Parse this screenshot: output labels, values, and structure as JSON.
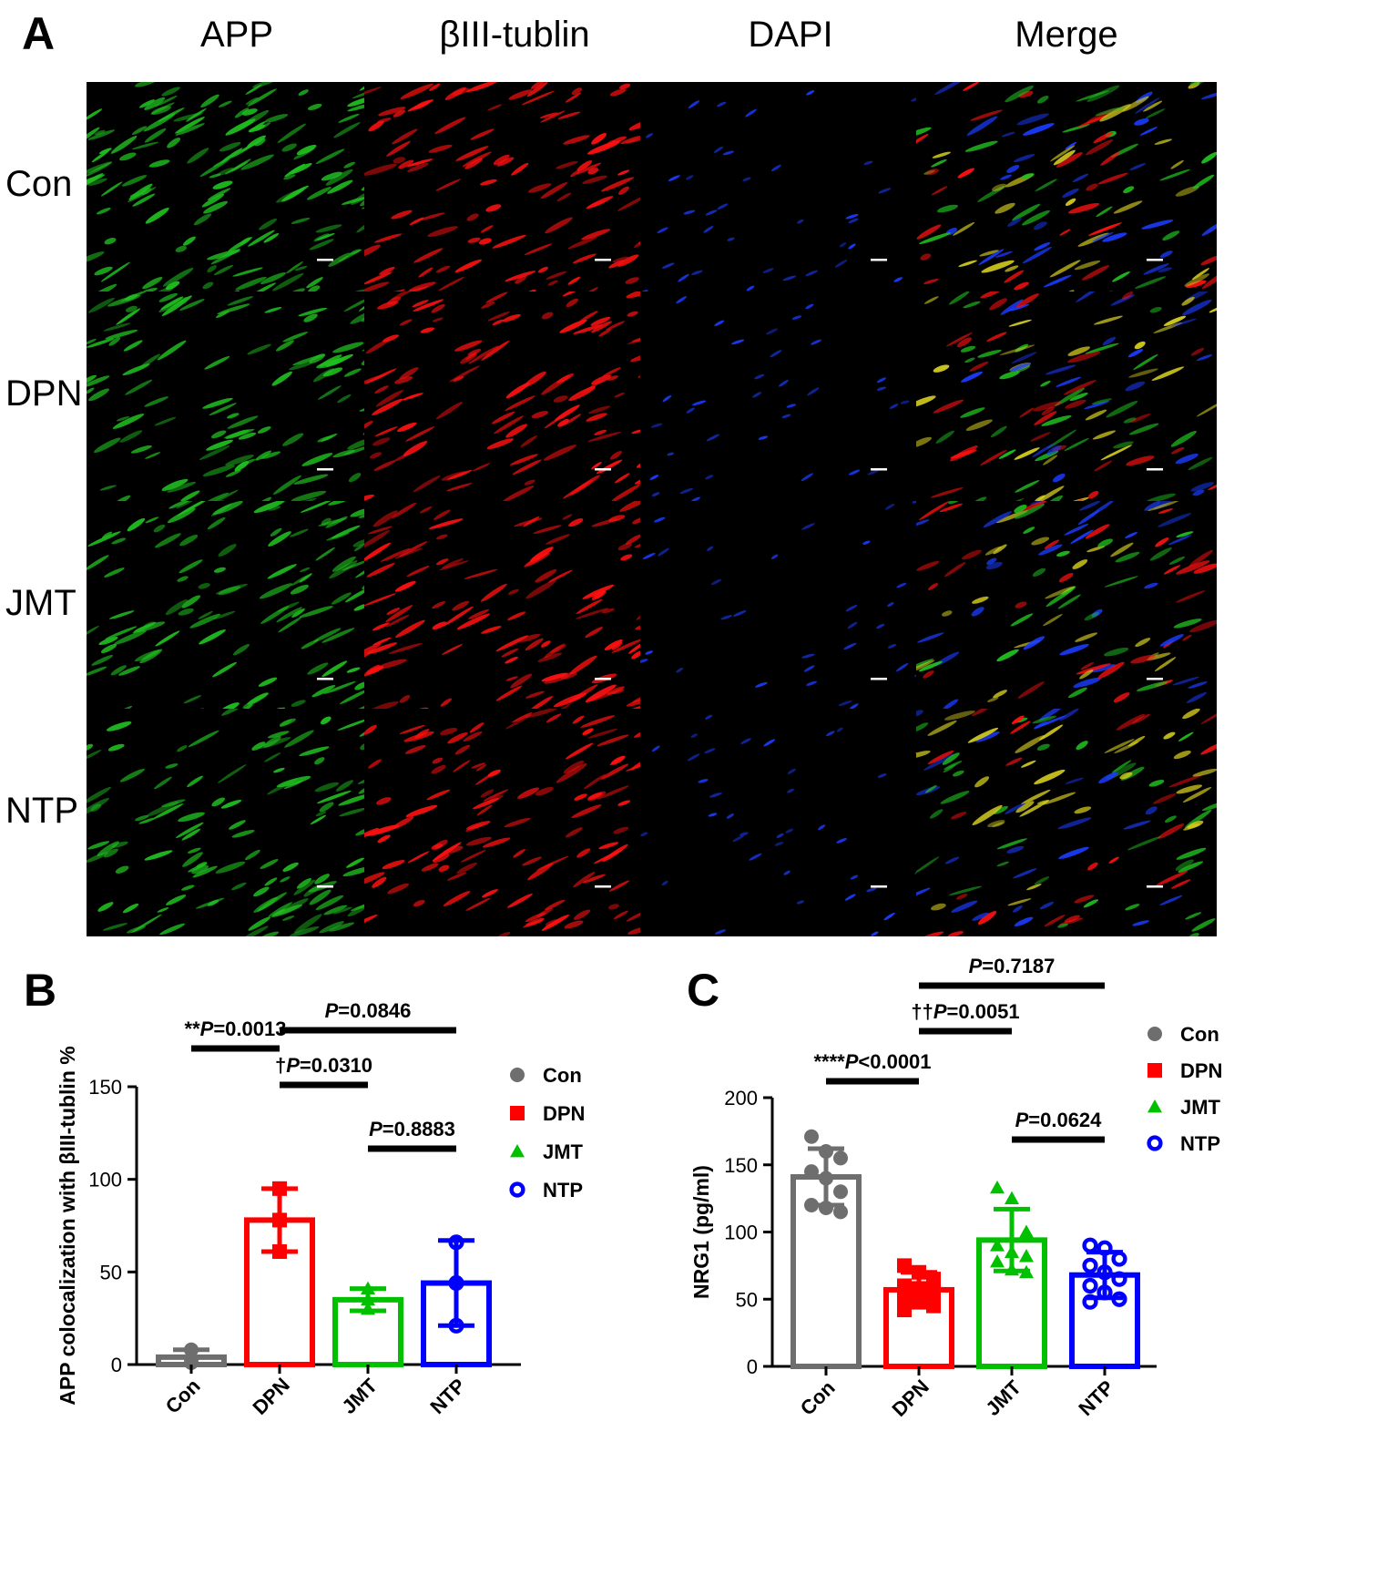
{
  "panel_A": {
    "letter": "A",
    "column_headers": [
      "APP",
      "βIII-tublin",
      "DAPI",
      "Merge"
    ],
    "row_labels": [
      "Con",
      "DPN",
      "JMT",
      "NTP"
    ]
  },
  "colors": {
    "Con": "#6e6e6e",
    "DPN": "#ff0000",
    "JMT": "#00c000",
    "NTP": "#0000ff",
    "APP_channel": "#20c020",
    "tubulin_channel": "#ff1010",
    "DAPI_channel": "#1a3cff"
  },
  "panel_B": {
    "letter": "B",
    "legend": [
      {
        "name": "Con",
        "marker": "circle"
      },
      {
        "name": "DPN",
        "marker": "square"
      },
      {
        "name": "JMT",
        "marker": "triangle"
      },
      {
        "name": "NTP",
        "marker": "ring"
      }
    ],
    "significance": [
      {
        "from": 0,
        "to": 1,
        "prefix": "**",
        "p": "P",
        "rest": "=0.0013"
      },
      {
        "from": 1,
        "to": 2,
        "prefix": "†",
        "p": "P",
        "rest": "=0.0310"
      },
      {
        "from": 1,
        "to": 3,
        "prefix": "",
        "p": "P",
        "rest": "=0.0846"
      },
      {
        "from": 2,
        "to": 3,
        "prefix": "",
        "p": "P",
        "rest": "=0.8883"
      }
    ]
  },
  "panel_C": {
    "letter": "C",
    "legend": [
      {
        "name": "Con",
        "marker": "circle"
      },
      {
        "name": "DPN",
        "marker": "square"
      },
      {
        "name": "JMT",
        "marker": "triangle"
      },
      {
        "name": "NTP",
        "marker": "ring"
      }
    ],
    "significance": [
      {
        "from": 0,
        "to": 1,
        "prefix": "****",
        "p": "P",
        "rest": "<0.0001"
      },
      {
        "from": 1,
        "to": 2,
        "prefix": "††",
        "p": "P",
        "rest": "=0.0051"
      },
      {
        "from": 1,
        "to": 3,
        "prefix": "",
        "p": "P",
        "rest": "=0.7187"
      },
      {
        "from": 2,
        "to": 3,
        "prefix": "",
        "p": "P",
        "rest": "=0.0624"
      }
    ]
  },
  "chart_data": [
    {
      "type": "bar",
      "title": "",
      "ylabel": "APP colocalization with βIII-tublin %",
      "xlabel": "",
      "categories": [
        "Con",
        "DPN",
        "JMT",
        "NTP"
      ],
      "values": [
        4,
        78,
        35,
        44
      ],
      "sd": [
        4,
        17,
        6,
        23
      ],
      "points": [
        [
          1,
          3,
          8
        ],
        [
          95,
          78,
          61
        ],
        [
          41,
          35,
          30
        ],
        [
          66,
          44,
          21
        ]
      ],
      "ylim": [
        0,
        150
      ],
      "yticks": [
        0,
        50,
        100,
        150
      ],
      "legend_position": "right"
    },
    {
      "type": "bar",
      "title": "",
      "ylabel": "NRG1 (pg/ml)",
      "xlabel": "",
      "categories": [
        "Con",
        "DPN",
        "JMT",
        "NTP"
      ],
      "values": [
        141,
        57,
        94,
        68
      ],
      "sd": [
        21,
        13,
        23,
        17
      ],
      "points": [
        [
          171,
          160,
          155,
          145,
          140,
          130,
          120,
          118,
          115
        ],
        [
          75,
          70,
          65,
          60,
          58,
          55,
          50,
          48,
          45,
          42
        ],
        [
          133,
          125,
          100,
          90,
          85,
          82,
          78,
          72,
          70
        ],
        [
          90,
          88,
          80,
          75,
          70,
          65,
          60,
          55,
          50,
          48
        ]
      ],
      "ylim": [
        0,
        200
      ],
      "yticks": [
        0,
        50,
        100,
        150,
        200
      ],
      "legend_position": "right"
    }
  ]
}
